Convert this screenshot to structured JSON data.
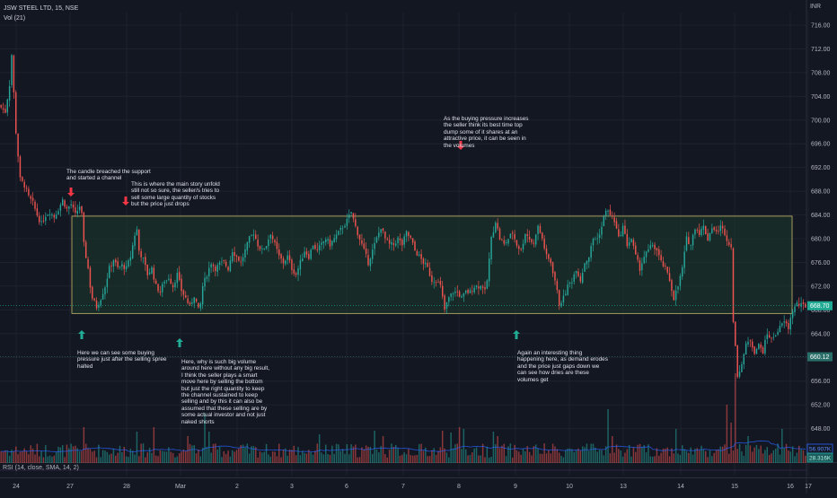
{
  "header": {
    "symbol": "JSW STEEL LTD, 15, NSE",
    "volume_indicator": "Vol (21)",
    "currency": "INR",
    "rsi_indicator": "RSI (14, close, SMA, 14, 2)"
  },
  "colors": {
    "background": "#131722",
    "grid": "#1e222d",
    "up": "#26a69a",
    "down": "#ef5350",
    "channel_border": "#c8b96a",
    "channel_fill": "#1b3a2c",
    "annotation_arrow_down": "#f23645",
    "annotation_arrow_up": "#22ab94",
    "volume_ma": "#2962ff"
  },
  "chart_data": {
    "type": "candlestick",
    "y_axis": {
      "ticks": [
        "716.00",
        "712.00",
        "708.00",
        "704.00",
        "700.00",
        "696.00",
        "692.00",
        "688.00",
        "684.00",
        "680.00",
        "676.00",
        "672.00",
        "668.00",
        "664.00",
        "660.00",
        "656.00",
        "652.00",
        "648.00"
      ],
      "range": [
        645,
        718
      ]
    },
    "x_axis": {
      "ticks": [
        "24",
        "27",
        "28",
        "Mar",
        "2",
        "3",
        "6",
        "7",
        "8",
        "9",
        "10",
        "13",
        "14",
        "15",
        "16",
        "17"
      ]
    },
    "channel": {
      "upper": 683.8,
      "lower": 667.4
    },
    "price_labels": [
      {
        "value": "668.70",
        "price": 668.7,
        "color": "#22ab94"
      },
      {
        "value": "660.12",
        "price": 660.1,
        "color": "#2a6e6a"
      }
    ],
    "volume_labels": [
      {
        "value": "56.907K",
        "color": "#2962ff"
      },
      {
        "value": "28.316K",
        "color": "#26a69a"
      }
    ],
    "price_path": [
      [
        0,
        702.5
      ],
      [
        3,
        701.4
      ],
      [
        5,
        706
      ],
      [
        6,
        711
      ],
      [
        8,
        698
      ],
      [
        10,
        690
      ],
      [
        12,
        689
      ],
      [
        14,
        687
      ],
      [
        16,
        686
      ],
      [
        18,
        684
      ],
      [
        20,
        682.5
      ],
      [
        22,
        684
      ],
      [
        24,
        684.5
      ],
      [
        26,
        683.7
      ],
      [
        28,
        685
      ],
      [
        30,
        686.5
      ],
      [
        32,
        685
      ],
      [
        34,
        685.8
      ],
      [
        36,
        684
      ],
      [
        38,
        685.5
      ],
      [
        39,
        684
      ],
      [
        40,
        679
      ],
      [
        41,
        677
      ],
      [
        42,
        675
      ],
      [
        43,
        672
      ],
      [
        44,
        670
      ],
      [
        46,
        668.5
      ],
      [
        48,
        670
      ],
      [
        50,
        672
      ],
      [
        52,
        675
      ],
      [
        54,
        676.5
      ],
      [
        56,
        675
      ],
      [
        58,
        675.5
      ],
      [
        60,
        675
      ],
      [
        62,
        677
      ],
      [
        64,
        680.7
      ],
      [
        65,
        681.5
      ],
      [
        66,
        678
      ],
      [
        68,
        676.5
      ],
      [
        70,
        674
      ],
      [
        72,
        675
      ],
      [
        74,
        672
      ],
      [
        76,
        671
      ],
      [
        78,
        673
      ],
      [
        79,
        673
      ],
      [
        80,
        673.5
      ],
      [
        82,
        672
      ],
      [
        84,
        674
      ],
      [
        86,
        671.3
      ],
      [
        88,
        670
      ],
      [
        90,
        668.5
      ],
      [
        92,
        670.5
      ],
      [
        94,
        668
      ],
      [
        95,
        669
      ],
      [
        96,
        672
      ],
      [
        98,
        674
      ],
      [
        100,
        676
      ],
      [
        102,
        675
      ],
      [
        104,
        675.7
      ],
      [
        106,
        676
      ],
      [
        108,
        675
      ],
      [
        110,
        678
      ],
      [
        112,
        677
      ],
      [
        114,
        676
      ],
      [
        116,
        678
      ],
      [
        118,
        680
      ],
      [
        120,
        681
      ],
      [
        122,
        679
      ],
      [
        124,
        678
      ],
      [
        126,
        679
      ],
      [
        128,
        681
      ],
      [
        130,
        679
      ],
      [
        132,
        677
      ],
      [
        134,
        676
      ],
      [
        136,
        677
      ],
      [
        138,
        675
      ],
      [
        140,
        674
      ],
      [
        142,
        676
      ],
      [
        144,
        678
      ],
      [
        146,
        677
      ],
      [
        148,
        679
      ],
      [
        150,
        678
      ],
      [
        152,
        679
      ],
      [
        154,
        680
      ],
      [
        156,
        679
      ],
      [
        158,
        680
      ],
      [
        160,
        681
      ],
      [
        162,
        682
      ],
      [
        164,
        683
      ],
      [
        166,
        684.5
      ],
      [
        168,
        682
      ],
      [
        170,
        680
      ],
      [
        172,
        678
      ],
      [
        174,
        676
      ],
      [
        176,
        678
      ],
      [
        178,
        680
      ],
      [
        180,
        682
      ],
      [
        182,
        680
      ],
      [
        184,
        679
      ],
      [
        186,
        679
      ],
      [
        188,
        680
      ],
      [
        190,
        679
      ],
      [
        192,
        681
      ],
      [
        194,
        680
      ],
      [
        196,
        678
      ],
      [
        198,
        677
      ],
      [
        200,
        676
      ],
      [
        202,
        675
      ],
      [
        204,
        673
      ],
      [
        206,
        673
      ],
      [
        208,
        672
      ],
      [
        210,
        668
      ],
      [
        212,
        670
      ],
      [
        214,
        671
      ],
      [
        216,
        671
      ],
      [
        218,
        670
      ],
      [
        220,
        671
      ],
      [
        222,
        671
      ],
      [
        224,
        672
      ],
      [
        226,
        672
      ],
      [
        228,
        672
      ],
      [
        229,
        671
      ],
      [
        230,
        673
      ],
      [
        232,
        680
      ],
      [
        234,
        683
      ],
      [
        236,
        680
      ],
      [
        238,
        679
      ],
      [
        240,
        680
      ],
      [
        242,
        681
      ],
      [
        244,
        679
      ],
      [
        246,
        678
      ],
      [
        248,
        681
      ],
      [
        250,
        680
      ],
      [
        252,
        679
      ],
      [
        253,
        681
      ],
      [
        254,
        682
      ],
      [
        256,
        680
      ],
      [
        258,
        677
      ],
      [
        260,
        676
      ],
      [
        262,
        673
      ],
      [
        264,
        669
      ],
      [
        266,
        670
      ],
      [
        268,
        672
      ],
      [
        270,
        673
      ],
      [
        272,
        675
      ],
      [
        274,
        673
      ],
      [
        276,
        676
      ],
      [
        278,
        677
      ],
      [
        280,
        680
      ],
      [
        282,
        680
      ],
      [
        284,
        682
      ],
      [
        286,
        685
      ],
      [
        288,
        684
      ],
      [
        290,
        683
      ],
      [
        292,
        680
      ],
      [
        294,
        682
      ],
      [
        296,
        679
      ],
      [
        298,
        680
      ],
      [
        300,
        677
      ],
      [
        302,
        675
      ],
      [
        304,
        677
      ],
      [
        306,
        678
      ],
      [
        308,
        679
      ],
      [
        310,
        678
      ],
      [
        312,
        676
      ],
      [
        314,
        675
      ],
      [
        316,
        673
      ],
      [
        318,
        670
      ],
      [
        320,
        672
      ],
      [
        322,
        675
      ],
      [
        324,
        680
      ],
      [
        326,
        679
      ],
      [
        328,
        682
      ],
      [
        330,
        681
      ],
      [
        332,
        682
      ],
      [
        334,
        680
      ],
      [
        336,
        682
      ],
      [
        338,
        681
      ],
      [
        340,
        682
      ],
      [
        342,
        681
      ],
      [
        344,
        679
      ],
      [
        345,
        679
      ],
      [
        346,
        666
      ],
      [
        348,
        657
      ],
      [
        350,
        659
      ],
      [
        352,
        662
      ],
      [
        354,
        663
      ],
      [
        356,
        661
      ],
      [
        358,
        662
      ],
      [
        360,
        661
      ],
      [
        362,
        664
      ],
      [
        364,
        663
      ],
      [
        366,
        664
      ],
      [
        368,
        665
      ],
      [
        370,
        666
      ],
      [
        372,
        665
      ],
      [
        374,
        668
      ],
      [
        376,
        669
      ],
      [
        378,
        668.7
      ]
    ],
    "volume_spikes": [
      [
        39,
        40
      ],
      [
        64,
        35
      ],
      [
        72,
        40
      ],
      [
        88,
        30
      ],
      [
        96,
        55
      ],
      [
        98,
        35
      ],
      [
        150,
        32
      ],
      [
        176,
        36
      ],
      [
        180,
        30
      ],
      [
        208,
        36
      ],
      [
        212,
        34
      ],
      [
        216,
        40
      ],
      [
        218,
        38
      ],
      [
        232,
        35
      ],
      [
        234,
        30
      ],
      [
        286,
        60
      ],
      [
        288,
        30
      ],
      [
        318,
        38
      ],
      [
        342,
        65
      ],
      [
        344,
        45
      ],
      [
        346,
        100
      ],
      [
        352,
        30
      ],
      [
        368,
        38
      ]
    ]
  },
  "annotations": [
    {
      "id": "breach",
      "direction": "down",
      "lines": [
        "The candle breached the support",
        "and started a channel"
      ]
    },
    {
      "id": "main-story",
      "direction": "down",
      "lines": [
        "This is where the main story unfold",
        "still not so sure, the seller/s tries to",
        "sell some large quantity of stocks",
        "but the price just drops"
      ]
    },
    {
      "id": "buying-pressure",
      "direction": "down",
      "lines": [
        "As the buying pressure increases",
        "the seller think its best time top",
        "dump some of it shares at an",
        "attractive price, it can be seen in",
        "the volumes"
      ]
    },
    {
      "id": "buying-after-spree",
      "direction": "up",
      "lines": [
        "Here we can see some buying",
        "pressure just after the selling spree",
        "halted"
      ]
    },
    {
      "id": "big-volume",
      "direction": "up",
      "lines": [
        "Here, why is such big volume",
        "around here without any big result,",
        "I think the seller plays a smart",
        "move here by selling the bottom",
        "but just the right quantity to keep",
        "the channel sustained to keep",
        "selling and by this it can also be",
        "assumed that these selling are by",
        "some actual investor and not just",
        "naked shorts"
      ]
    },
    {
      "id": "interesting-thing",
      "direction": "up",
      "lines": [
        "Again an interesting thing",
        "happening here, as demand erodes",
        "and the price just gaps down we",
        "can see how dries are these",
        "volumes get"
      ]
    }
  ]
}
